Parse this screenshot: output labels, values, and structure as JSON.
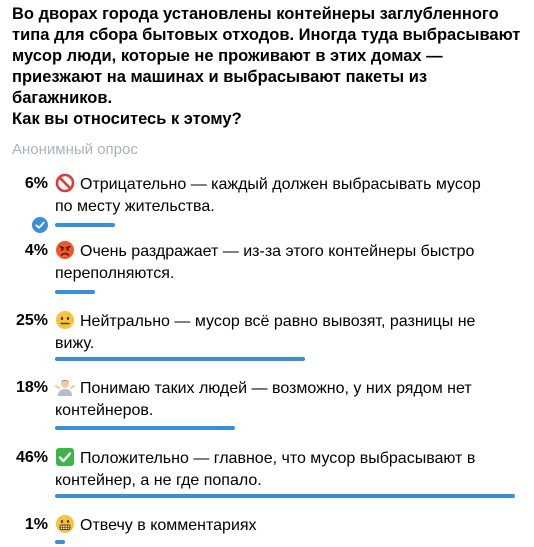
{
  "poll": {
    "question_lines": [
      "Во дворах города установлены контейнеры заглубленного",
      "типа для сбора бытовых отходов. Иногда туда выбрасывают",
      "мусор люди, которые не проживают в этих домах —",
      "приезжают на машинах и выбрасывают пакеты из",
      "багажников.",
      "Как вы относитесь к этому?"
    ],
    "type_label": "Анонимный опрос",
    "accent_color": "#3a8fd9",
    "options": [
      {
        "percent_label": "6%",
        "percent": 6,
        "icon": "no-entry-sign-icon",
        "text_lines": [
          "Отрицательно — каждый должен выбрасывать мусор",
          "по месту жительства."
        ],
        "voted": true
      },
      {
        "percent_label": "4%",
        "percent": 4,
        "icon": "angry-face-icon",
        "text_lines": [
          "Очень раздражает — из-за этого контейнеры быстро",
          "переполняются."
        ],
        "voted": false
      },
      {
        "percent_label": "25%",
        "percent": 25,
        "icon": "neutral-face-icon",
        "text_lines": [
          "Нейтрально — мусор всё равно вывозят, разницы не",
          "вижу."
        ],
        "voted": false
      },
      {
        "percent_label": "18%",
        "percent": 18,
        "icon": "person-shrugging-icon",
        "text_lines": [
          "Понимаю таких людей — возможно, у них рядом нет",
          "контейнеров."
        ],
        "voted": false
      },
      {
        "percent_label": "46%",
        "percent": 46,
        "icon": "check-mark-button-icon",
        "text_lines": [
          "Положительно — главное, что мусор выбрасывают в",
          "контейнер, а не где попало."
        ],
        "voted": false
      },
      {
        "percent_label": "1%",
        "percent": 1,
        "icon": "grimacing-face-icon",
        "text_lines": [
          "Отвечу в комментариях"
        ],
        "voted": false
      }
    ]
  }
}
